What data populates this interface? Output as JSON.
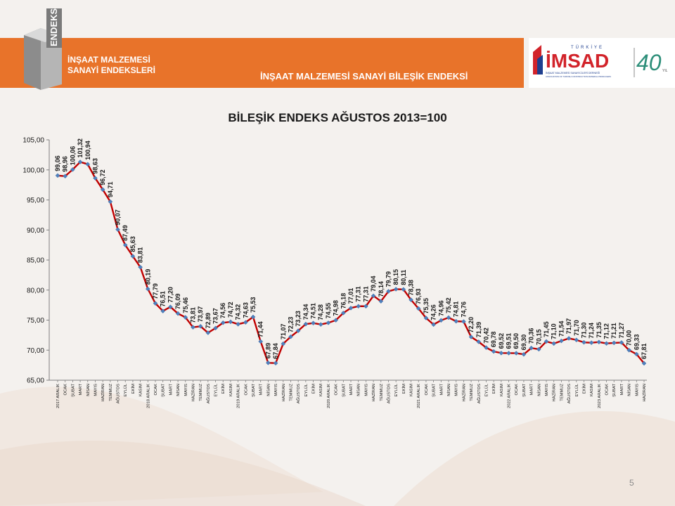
{
  "header": {
    "logo_text": "ENDEKS",
    "left_title_line1": "İNŞAAT MALZEMESİ",
    "left_title_line2": "SANAYİ ENDEKSLERİ",
    "main_title": "İNŞAAT MALZEMESİ SANAYİ BİLEŞİK ENDEKSİ",
    "org_logo_top": "TÜRKİYE",
    "org_logo_name": "İMSAD",
    "org_logo_sub1": "İNŞAAT MALZEMESİ SANAYİCİLERİ DERNEĞİ",
    "org_logo_sub2": "ASSOCIATION OF TURKISH CONSTRUCTION MATERIAL PRODUCERS",
    "anniversary_number": "40",
    "anniversary_suffix": "YIL",
    "colors": {
      "accent": "#e8732a",
      "logo_red": "#d2232a",
      "logo_blue": "#1f3f8f"
    }
  },
  "page_number": "5",
  "chart_data": {
    "type": "line",
    "title": "BİLEŞİK ENDEKS AĞUSTOS 2013=100",
    "xlabel": "",
    "ylabel": "",
    "ylim": [
      65,
      105
    ],
    "yticks": [
      "65,00",
      "70,00",
      "75,00",
      "80,00",
      "85,00",
      "90,00",
      "95,00",
      "100,00",
      "105,00"
    ],
    "grid": false,
    "legend": "none",
    "line_color": "#c00000",
    "marker_color": "#4f81bd",
    "categories": [
      "2017 ARALIK",
      "OCAK",
      "ŞUBAT",
      "MART",
      "NİSAN",
      "MAYIS",
      "HAZİRAN",
      "TEMMUZ",
      "AĞUSTOS",
      "EYLÜL",
      "EKİM",
      "KASIM",
      "2018 ARALIK",
      "OCAK",
      "ŞUBAT",
      "MART",
      "NİSAN",
      "MAYIS",
      "HAZİRAN",
      "TEMMUZ",
      "AĞUSTOS",
      "EYLÜL",
      "EKİM",
      "KASIM",
      "2019 ARALIK",
      "OCAK",
      "ŞUBAT",
      "MART",
      "NİSAN",
      "MAYIS",
      "HAZİRAN",
      "TEMMUZ",
      "AĞUSTOS",
      "EYLÜL",
      "EKİM",
      "KASIM",
      "2020 ARALIK",
      "OCAK",
      "ŞUBAT",
      "MART",
      "NİSAN",
      "MAYIS",
      "HAZİRAN",
      "TEMMUZ",
      "AĞUSTOS",
      "EYLÜL",
      "EKİM",
      "KASIM",
      "2021 ARALIK",
      "OCAK",
      "ŞUBAT",
      "MART",
      "NİSAN",
      "MAYIS",
      "HAZİRAN",
      "TEMMUZ",
      "AĞUSTOS",
      "EYLÜL",
      "EKİM",
      "KASIM",
      "2022 ARALIK",
      "OCAK",
      "ŞUBAT",
      "MART",
      "NİSAN",
      "MAYIS",
      "HAZİRAN",
      "TEMMUZ",
      "AĞUSTOS",
      "EYLÜL",
      "EKİM",
      "KASIM",
      "2023 ARALIK",
      "OCAK",
      "ŞUBAT",
      "MART",
      "NİSAN",
      "MAYIS",
      "HAZİRAN"
    ],
    "values": [
      99.06,
      98.96,
      100.06,
      101.32,
      100.94,
      98.63,
      96.72,
      94.71,
      90.07,
      87.49,
      85.63,
      83.81,
      80.19,
      77.79,
      76.51,
      77.2,
      76.09,
      75.46,
      73.81,
      73.97,
      72.89,
      73.67,
      74.56,
      74.72,
      74.32,
      74.63,
      75.53,
      71.44,
      67.89,
      67.84,
      71.07,
      72.23,
      73.23,
      74.34,
      74.51,
      74.28,
      74.55,
      74.98,
      76.18,
      77.01,
      77.31,
      77.31,
      79.04,
      78.14,
      79.79,
      80.15,
      80.11,
      78.38,
      76.93,
      75.35,
      74.26,
      74.96,
      75.42,
      74.81,
      74.76,
      72.2,
      71.39,
      70.42,
      69.78,
      69.52,
      69.51,
      69.5,
      69.3,
      70.36,
      70.15,
      71.45,
      71.1,
      71.54,
      71.97,
      71.7,
      71.3,
      71.24,
      71.35,
      71.12,
      71.21,
      71.27,
      70.0,
      69.33,
      67.81
    ],
    "data_labels": [
      "99,06",
      "98,96",
      "100,06",
      "101,32",
      "100,94",
      "98,63",
      "96,72",
      "94,71",
      "90,07",
      "87,49",
      "85,63",
      "83,81",
      "80,19",
      "77,79",
      "76,51",
      "77,20",
      "76,09",
      "75,46",
      "73,81",
      "73,97",
      "72,89",
      "73,67",
      "74,56",
      "74,72",
      "74,32",
      "74,63",
      "75,53",
      "71,44",
      "67,89",
      "67,84",
      "71,07",
      "72,23",
      "73,23",
      "74,34",
      "74,51",
      "74,28",
      "74,55",
      "74,98",
      "76,18",
      "77,01",
      "77,31",
      "77,31",
      "79,04",
      "78,14",
      "79,79",
      "80,15",
      "80,11",
      "78,38",
      "76,93",
      "75,35",
      "74,26",
      "74,96",
      "75,42",
      "74,81",
      "74,76",
      "72,20",
      "71,39",
      "70,42",
      "69,78",
      "69,52",
      "69,51",
      "69,50",
      "69,30",
      "70,36",
      "70,15",
      "71,45",
      "71,10",
      "71,54",
      "71,97",
      "71,70",
      "71,30",
      "71,24",
      "71,35",
      "71,12",
      "71,21",
      "71,27",
      "70,00",
      "69,33",
      "67,81"
    ]
  }
}
